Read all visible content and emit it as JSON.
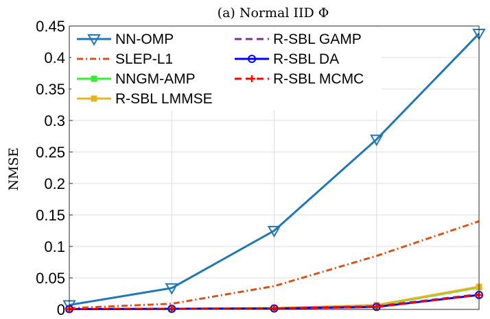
{
  "chart_data": {
    "type": "line",
    "title": "(a) Normal IID Φ",
    "xlabel": "",
    "ylabel": "NMSE",
    "x": [
      1,
      2,
      3,
      4,
      5
    ],
    "xlim": [
      1,
      5
    ],
    "ylim": [
      0,
      0.45
    ],
    "yticks": [
      "0",
      "0.05",
      "0.1",
      "0.15",
      "0.2",
      "0.25",
      "0.3",
      "0.35",
      "0.4",
      "0.45"
    ],
    "ytick_values": [
      0,
      0.05,
      0.1,
      0.15,
      0.2,
      0.25,
      0.3,
      0.35,
      0.4,
      0.45
    ],
    "grid": true,
    "legend_position": "top-left",
    "series": [
      {
        "name": "NN-OMP",
        "values": [
          0.007,
          0.034,
          0.125,
          0.27,
          0.438
        ],
        "color": "#1f77b4",
        "dash": "solid",
        "marker": "triangle-down"
      },
      {
        "name": "SLEP-L1",
        "values": [
          0.002,
          0.009,
          0.037,
          0.085,
          0.14
        ],
        "color": "#d95319",
        "dash": "dashdot",
        "marker": "none"
      },
      {
        "name": "NNGM-AMP",
        "values": [
          0.0005,
          0.001,
          0.002,
          0.006,
          0.035
        ],
        "color": "#33ee33",
        "dash": "solid",
        "marker": "square"
      },
      {
        "name": "R-SBL LMMSE",
        "values": [
          0.0005,
          0.001,
          0.002,
          0.007,
          0.036
        ],
        "color": "#e6b422",
        "dash": "solid",
        "marker": "square"
      },
      {
        "name": "R-SBL GAMP",
        "values": [
          0.0005,
          0.001,
          0.0015,
          0.005,
          0.024
        ],
        "color": "#7e2f8e",
        "dash": "dashed",
        "marker": "none"
      },
      {
        "name": "R-SBL DA",
        "values": [
          0.0005,
          0.001,
          0.0015,
          0.004,
          0.023
        ],
        "color": "#0000ff",
        "dash": "solid",
        "marker": "circle"
      },
      {
        "name": "R-SBL MCMC",
        "values": [
          0.0005,
          0.001,
          0.0015,
          0.004,
          0.023
        ],
        "color": "#ff0000",
        "dash": "dashed",
        "marker": "plus"
      }
    ]
  }
}
